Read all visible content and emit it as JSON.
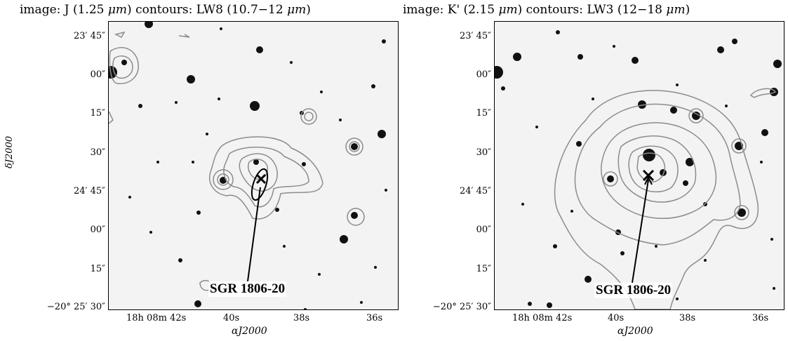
{
  "panels": [
    {
      "title_prefix": "image: J (1.25 ",
      "title_mu": "μm",
      "title_mid": ")   contours: LW8 (10.7−12 ",
      "title_mu2": "μm",
      "title_suffix": ")",
      "source_label": "SGR 1806-20"
    },
    {
      "title_prefix": "image: K' (2.15 ",
      "title_mu": "μm",
      "title_mid": ")   contours: LW3 (12−18 ",
      "title_mu2": "μm",
      "title_suffix": ")",
      "source_label": "SGR 1806-20"
    }
  ],
  "axes": {
    "y_ticks": [
      "23′ 45″",
      "00″",
      "15″",
      "30″",
      "24′ 45″",
      "00″",
      "15″",
      "−20° 25′ 30″"
    ],
    "x_ticks": [
      "18h 08m 42s",
      "40s",
      "38s",
      "36s"
    ],
    "x_title": "αJ2000",
    "y_title": "δJ2000"
  },
  "colors": {
    "background": "#f3f3f3",
    "contour": "#8c8c8c",
    "star": "#111111",
    "marker": "#000000"
  }
}
